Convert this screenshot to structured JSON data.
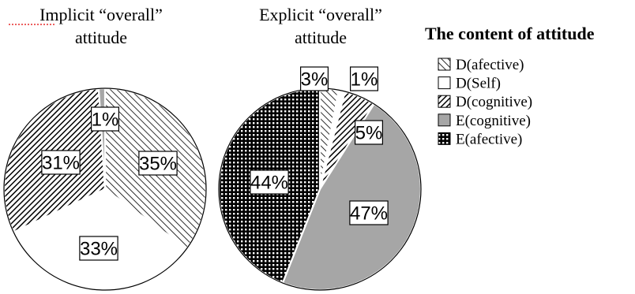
{
  "chart_data": [
    {
      "type": "pie",
      "title": [
        "Implicit “overall”",
        "attitude"
      ],
      "slices": [
        {
          "label": "D(afective)",
          "value": 35,
          "text": "35%",
          "pattern": "diag-left"
        },
        {
          "label": "D(Self)",
          "value": 33,
          "text": "33%",
          "pattern": "white"
        },
        {
          "label": "D(cognitive)",
          "value": 31,
          "text": "31%",
          "pattern": "diag-dense"
        },
        {
          "label": "E(cognitive)",
          "value": 1,
          "text": "1%",
          "pattern": "gray"
        }
      ]
    },
    {
      "type": "pie",
      "title": [
        "Explicit “overall”",
        "attitude"
      ],
      "slices": [
        {
          "label": "D(afective)",
          "value": 3,
          "text": "3%",
          "pattern": "diag-left"
        },
        {
          "label": "D(Self)",
          "value": 1,
          "text": "1%",
          "pattern": "white"
        },
        {
          "label": "D(cognitive)",
          "value": 5,
          "text": "5%",
          "pattern": "diag-dense"
        },
        {
          "label": "E(cognitive)",
          "value": 47,
          "text": "47%",
          "pattern": "gray"
        },
        {
          "label": "E(afective)",
          "value": 44,
          "text": "44%",
          "pattern": "checker"
        }
      ]
    }
  ],
  "legend": {
    "title": "The content of attitude",
    "items": [
      {
        "label": "D(afective)",
        "pattern": "diag-left"
      },
      {
        "label": "D(Self)",
        "pattern": "white"
      },
      {
        "label": "D(cognitive)",
        "pattern": "diag-dense"
      },
      {
        "label": "E(cognitive)",
        "pattern": "gray"
      },
      {
        "label": "E(afective)",
        "pattern": "checker"
      }
    ]
  },
  "colors": {
    "gray": "#a6a6a6",
    "ink": "#000000"
  }
}
